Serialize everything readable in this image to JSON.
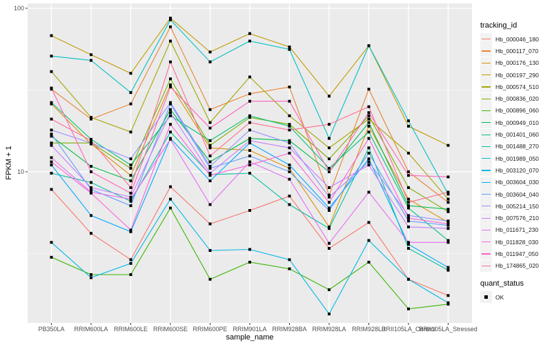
{
  "chart_data": {
    "type": "line",
    "title": "",
    "xlabel": "sample_name",
    "ylabel": "FPKM + 1",
    "yscale": "log10",
    "ylim": [
      1.19,
      107
    ],
    "y_ticks": [
      10,
      100
    ],
    "y_tick_labels": [
      "10",
      "100"
    ],
    "grid": true,
    "legend_position": "right",
    "categories": [
      "PB350LA",
      "RRIM600LA",
      "RRIM600LE",
      "RRIM600SE",
      "RRIM600PE",
      "RRIM901LA",
      "RRIM928BA",
      "RRIM928LA",
      "RRIM928LB",
      "RRII105LA_Control",
      "RRII105LA_Stressed"
    ],
    "legend": {
      "color_title": "tracking_id",
      "shape_title": "quant_status",
      "shape_entries": [
        "OK"
      ]
    },
    "series": [
      {
        "name": "Hb_000046_180",
        "color": "#F8766D",
        "values": [
          7.8,
          4.2,
          2.9,
          8.1,
          4.8,
          5.8,
          7.1,
          3.4,
          4.9,
          2.2,
          1.75
        ]
      },
      {
        "name": "Hb_000117_070",
        "color": "#EA8331",
        "values": [
          32.0,
          21.0,
          26.0,
          77.0,
          24.0,
          30.0,
          33.0,
          7.2,
          32.0,
          10.0,
          6.5
        ]
      },
      {
        "name": "Hb_000176_130",
        "color": "#D89000",
        "values": [
          26.0,
          14.8,
          9.5,
          34.0,
          14.0,
          13.5,
          10.5,
          4.6,
          19.0,
          6.8,
          4.9
        ]
      },
      {
        "name": "Hb_000197_290",
        "color": "#C09B00",
        "values": [
          68.0,
          52.0,
          40.0,
          87.0,
          54.0,
          70.0,
          58.0,
          29.0,
          59.0,
          19.0,
          14.5
        ]
      },
      {
        "name": "Hb_000574_510",
        "color": "#A3A500",
        "values": [
          41.0,
          21.5,
          17.5,
          63.0,
          20.0,
          38.0,
          22.0,
          14.0,
          21.0,
          13.0,
          6.8
        ]
      },
      {
        "name": "Hb_000836_020",
        "color": "#7CAE00",
        "values": [
          15.0,
          15.0,
          10.5,
          37.0,
          14.5,
          21.5,
          19.5,
          12.0,
          22.0,
          8.0,
          5.7
        ]
      },
      {
        "name": "Hb_000896_060",
        "color": "#39B600",
        "values": [
          3.0,
          2.35,
          2.35,
          6.0,
          2.2,
          2.8,
          2.55,
          1.9,
          2.8,
          1.45,
          1.55
        ]
      },
      {
        "name": "Hb_000949_010",
        "color": "#00BB4E",
        "values": [
          16.5,
          10.8,
          8.8,
          24.0,
          11.5,
          16.0,
          15.5,
          10.0,
          20.0,
          6.2,
          5.9
        ]
      },
      {
        "name": "Hb_001401_060",
        "color": "#00BF7D",
        "values": [
          26.5,
          15.8,
          11.0,
          22.0,
          15.5,
          22.0,
          19.0,
          10.5,
          17.5,
          6.0,
          3.8
        ]
      },
      {
        "name": "Hb_001488_270",
        "color": "#00C1A3",
        "values": [
          9.8,
          8.6,
          6.6,
          17.5,
          9.6,
          9.8,
          6.3,
          4.5,
          14.0,
          3.4,
          2.5
        ]
      },
      {
        "name": "Hb_001989_050",
        "color": "#00BFC4",
        "values": [
          51.0,
          48.0,
          30.5,
          85.0,
          47.0,
          63.0,
          56.0,
          16.0,
          59.0,
          20.5,
          7.3
        ]
      },
      {
        "name": "Hb_003120_070",
        "color": "#00B8E5",
        "values": [
          3.7,
          2.25,
          2.75,
          6.8,
          3.3,
          3.35,
          2.9,
          1.35,
          3.8,
          2.2,
          1.58
        ]
      },
      {
        "name": "Hb_003604_030",
        "color": "#00A9FF",
        "values": [
          11.0,
          5.4,
          4.3,
          16.0,
          8.8,
          15.0,
          11.0,
          6.0,
          12.0,
          3.6,
          2.6
        ]
      },
      {
        "name": "Hb_003604_040",
        "color": "#619CFF",
        "values": [
          17.0,
          7.8,
          6.2,
          26.0,
          10.5,
          12.5,
          10.0,
          5.8,
          13.0,
          5.0,
          4.7
        ]
      },
      {
        "name": "Hb_005214_150",
        "color": "#9590FF",
        "values": [
          18.0,
          15.0,
          12.0,
          26.5,
          10.8,
          18.0,
          15.0,
          7.0,
          11.5,
          5.4,
          5.0
        ]
      },
      {
        "name": "Hb_007576_210",
        "color": "#C77CFF",
        "values": [
          14.5,
          8.0,
          7.0,
          23.0,
          9.8,
          15.5,
          14.0,
          8.0,
          11.0,
          4.6,
          4.5
        ]
      },
      {
        "name": "Hb_011671_230",
        "color": "#E76BF3",
        "values": [
          12.2,
          7.5,
          6.8,
          15.8,
          6.3,
          11.5,
          9.0,
          3.65,
          7.5,
          3.7,
          3.7
        ]
      },
      {
        "name": "Hb_011828_030",
        "color": "#FA62DB",
        "values": [
          11.5,
          7.4,
          4.4,
          19.5,
          9.5,
          11.0,
          13.0,
          6.5,
          16.0,
          5.2,
          4.8
        ]
      },
      {
        "name": "Hb_011947_050",
        "color": "#FF62BC",
        "values": [
          32.5,
          10.0,
          7.4,
          33.0,
          18.5,
          27.0,
          27.0,
          10.0,
          23.0,
          9.5,
          9.3
        ]
      },
      {
        "name": "Hb_174865_020",
        "color": "#FF6C91",
        "values": [
          21.0,
          15.5,
          8.0,
          47.0,
          12.5,
          20.0,
          18.0,
          19.5,
          25.0,
          6.5,
          7.5
        ]
      }
    ]
  }
}
